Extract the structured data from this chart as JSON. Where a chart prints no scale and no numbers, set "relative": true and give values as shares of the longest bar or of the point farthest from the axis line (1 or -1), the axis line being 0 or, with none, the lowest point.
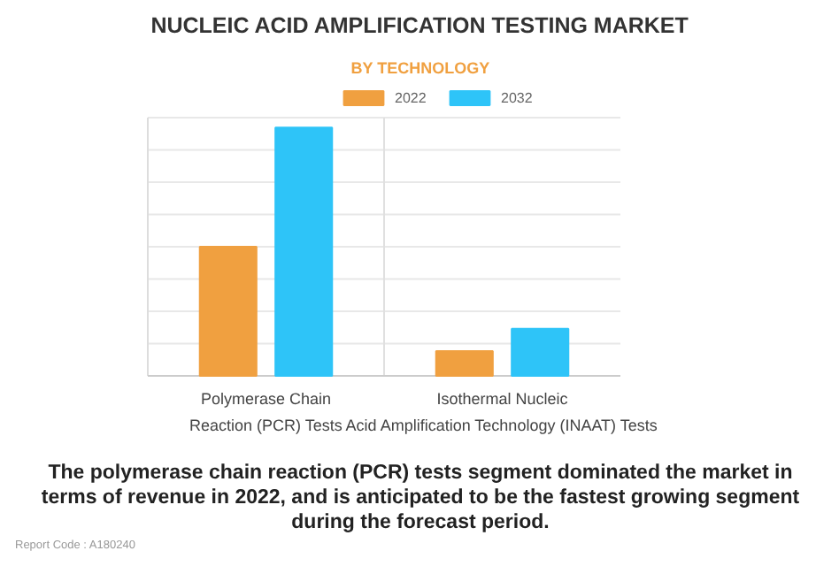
{
  "chart_data": {
    "type": "bar",
    "title": "NUCLEIC ACID AMPLIFICATION TESTING MARKET",
    "subtitle": "BY TECHNOLOGY",
    "categories": [
      "Polymerase Chain\nReaction (PCR) Tests",
      "Isothermal Nucleic\nAcid Amplification Technology (INAAT) Tests"
    ],
    "series": [
      {
        "name": "2022",
        "color": "#f0a040",
        "values": [
          0.52,
          0.1
        ]
      },
      {
        "name": "2032",
        "color": "#2ec4f8",
        "values": [
          1,
          0.19
        ]
      }
    ],
    "relative": true,
    "grid": true,
    "legend": "top",
    "annotations": [
      "The polymerase chain reaction (PCR) tests segment dominated the market in terms of revenue in 2022, and is anticipated to be the fastest growing segment during the forecast period.",
      "Report Code : A180240"
    ]
  }
}
